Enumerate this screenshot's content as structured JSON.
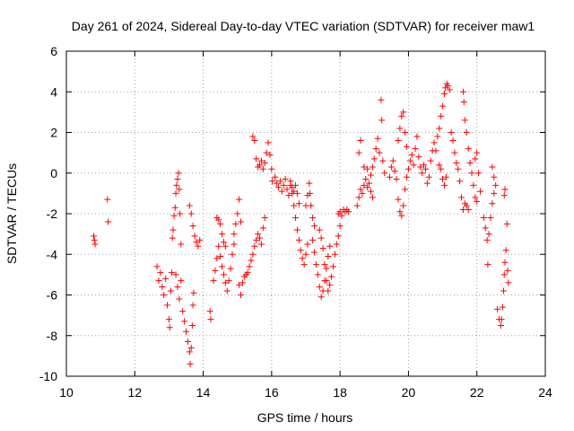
{
  "chart_data": {
    "type": "scatter",
    "title": "Day 261 of 2024, Sidereal Day-to-day VTEC variation (SDTVAR) for receiver maw1",
    "xlabel": "GPS time / hours",
    "ylabel": "SDTVAR / TECUs",
    "xlim": [
      10,
      24
    ],
    "ylim": [
      -10,
      6
    ],
    "x_ticks": [
      10,
      12,
      14,
      16,
      18,
      20,
      22,
      24
    ],
    "x_tick_labels": [
      "10",
      "12",
      "14",
      "16",
      "18",
      "20",
      "22",
      "24"
    ],
    "y_ticks": [
      -10,
      -8,
      -6,
      -4,
      -2,
      0,
      2,
      4,
      6
    ],
    "y_tick_labels": [
      "-10",
      "-8",
      "-6",
      "-4",
      "-2",
      "0",
      "2",
      "4",
      "6"
    ],
    "grid": true,
    "marker": "+",
    "marker_color": "#ff0000",
    "series": [
      {
        "name": "maw1",
        "points": [
          [
            10.8,
            -3.1
          ],
          [
            10.82,
            -3.3
          ],
          [
            10.84,
            -3.5
          ],
          [
            11.2,
            -1.3
          ],
          [
            11.22,
            -2.4
          ],
          [
            12.65,
            -4.6
          ],
          [
            12.7,
            -5.3
          ],
          [
            12.75,
            -4.9
          ],
          [
            12.8,
            -5.6
          ],
          [
            12.85,
            -6.0
          ],
          [
            12.9,
            -5.2
          ],
          [
            12.95,
            -6.5
          ],
          [
            13.0,
            -7.2
          ],
          [
            13.02,
            -7.6
          ],
          [
            13.05,
            -5.8
          ],
          [
            13.08,
            -4.9
          ],
          [
            13.1,
            -3.2
          ],
          [
            13.12,
            -2.8
          ],
          [
            13.15,
            -2.1
          ],
          [
            13.18,
            -1.7
          ],
          [
            13.2,
            -1.0
          ],
          [
            13.22,
            -0.6
          ],
          [
            13.25,
            -0.3
          ],
          [
            13.28,
            0.0
          ],
          [
            13.3,
            -0.8
          ],
          [
            13.32,
            -2.0
          ],
          [
            13.35,
            -3.5
          ],
          [
            13.2,
            -5.0
          ],
          [
            13.25,
            -5.6
          ],
          [
            13.3,
            -6.2
          ],
          [
            13.35,
            -5.3
          ],
          [
            13.4,
            -6.8
          ],
          [
            13.45,
            -7.3
          ],
          [
            13.5,
            -7.8
          ],
          [
            13.55,
            -8.3
          ],
          [
            13.6,
            -8.8
          ],
          [
            13.62,
            -9.4
          ],
          [
            13.65,
            -8.6
          ],
          [
            13.68,
            -7.5
          ],
          [
            13.7,
            -6.5
          ],
          [
            13.72,
            -5.9
          ],
          [
            13.6,
            -1.6
          ],
          [
            13.65,
            -2.0
          ],
          [
            13.7,
            -2.6
          ],
          [
            13.75,
            -3.1
          ],
          [
            13.8,
            -3.4
          ],
          [
            13.85,
            -3.6
          ],
          [
            13.9,
            -3.3
          ],
          [
            14.2,
            -6.8
          ],
          [
            14.22,
            -7.2
          ],
          [
            14.3,
            -5.3
          ],
          [
            14.35,
            -4.8
          ],
          [
            14.4,
            -4.2
          ],
          [
            14.45,
            -3.6
          ],
          [
            14.5,
            -4.1
          ],
          [
            14.55,
            -4.6
          ],
          [
            14.6,
            -5.0
          ],
          [
            14.65,
            -5.4
          ],
          [
            14.7,
            -5.8
          ],
          [
            14.75,
            -5.3
          ],
          [
            14.8,
            -4.7
          ],
          [
            14.85,
            -4.0
          ],
          [
            14.9,
            -3.5
          ],
          [
            14.4,
            -2.2
          ],
          [
            14.45,
            -2.3
          ],
          [
            14.5,
            -2.5
          ],
          [
            14.55,
            -3.0
          ],
          [
            14.6,
            -3.4
          ],
          [
            14.65,
            -3.6
          ],
          [
            14.9,
            -3.0
          ],
          [
            14.95,
            -2.5
          ],
          [
            15.0,
            -2.0
          ],
          [
            15.05,
            -1.3
          ],
          [
            15.1,
            -2.4
          ],
          [
            15.05,
            -5.5
          ],
          [
            15.1,
            -6.0
          ],
          [
            15.15,
            -5.4
          ],
          [
            15.2,
            -5.1
          ],
          [
            15.25,
            -5.0
          ],
          [
            15.3,
            -4.9
          ],
          [
            15.35,
            -4.6
          ],
          [
            15.4,
            -4.3
          ],
          [
            15.45,
            -4.0
          ],
          [
            15.5,
            -3.6
          ],
          [
            15.55,
            -3.3
          ],
          [
            15.6,
            -3.0
          ],
          [
            15.65,
            -3.2
          ],
          [
            15.7,
            -3.5
          ],
          [
            15.75,
            -2.7
          ],
          [
            15.8,
            -2.2
          ],
          [
            15.45,
            1.8
          ],
          [
            15.5,
            1.6
          ],
          [
            15.55,
            0.7
          ],
          [
            15.6,
            0.3
          ],
          [
            15.65,
            0.4
          ],
          [
            15.7,
            0.6
          ],
          [
            15.75,
            0.2
          ],
          [
            15.8,
            0.5
          ],
          [
            15.85,
            1.0
          ],
          [
            15.9,
            1.5
          ],
          [
            15.95,
            0.9
          ],
          [
            16.0,
            0.2
          ],
          [
            16.02,
            -0.4
          ],
          [
            16.1,
            -0.2
          ],
          [
            16.15,
            -0.5
          ],
          [
            16.2,
            -0.7
          ],
          [
            16.25,
            -0.4
          ],
          [
            16.3,
            -0.9
          ],
          [
            16.35,
            -0.6
          ],
          [
            16.4,
            -0.3
          ],
          [
            16.45,
            -0.8
          ],
          [
            16.5,
            -1.1
          ],
          [
            16.55,
            -0.4
          ],
          [
            16.6,
            -0.7
          ],
          [
            16.65,
            -0.9
          ],
          [
            16.7,
            -0.6
          ],
          [
            16.75,
            -1.0
          ],
          [
            16.8,
            -1.5
          ],
          [
            16.55,
            -0.6
          ],
          [
            16.6,
            -1.0
          ],
          [
            16.65,
            -1.6
          ],
          [
            16.7,
            -2.2
          ],
          [
            16.75,
            -2.8
          ],
          [
            16.8,
            -3.3
          ],
          [
            16.85,
            -3.8
          ],
          [
            16.9,
            -4.2
          ],
          [
            16.95,
            -4.5
          ],
          [
            17.0,
            -4.0
          ],
          [
            17.05,
            -3.5
          ],
          [
            17.0,
            -1.6
          ],
          [
            17.05,
            -1.1
          ],
          [
            17.1,
            -0.5
          ],
          [
            17.12,
            -1.0
          ],
          [
            17.15,
            -1.6
          ],
          [
            17.2,
            -2.2
          ],
          [
            17.25,
            -2.6
          ],
          [
            17.2,
            -3.3
          ],
          [
            17.25,
            -3.9
          ],
          [
            17.3,
            -4.5
          ],
          [
            17.35,
            -5.0
          ],
          [
            17.4,
            -5.6
          ],
          [
            17.45,
            -6.1
          ],
          [
            17.5,
            -5.8
          ],
          [
            17.55,
            -5.3
          ],
          [
            17.6,
            -4.7
          ],
          [
            17.65,
            -4.1
          ],
          [
            17.7,
            -3.6
          ],
          [
            17.4,
            -2.8
          ],
          [
            17.45,
            -3.2
          ],
          [
            17.5,
            -3.7
          ],
          [
            17.55,
            -4.5
          ],
          [
            17.6,
            -5.3
          ],
          [
            17.65,
            -5.8
          ],
          [
            17.7,
            -5.5
          ],
          [
            17.75,
            -5.1
          ],
          [
            17.8,
            -4.6
          ],
          [
            17.85,
            -4.0
          ],
          [
            17.9,
            -3.5
          ],
          [
            17.95,
            -3.1
          ],
          [
            18.0,
            -2.6
          ],
          [
            17.95,
            -2.0
          ],
          [
            18.0,
            -1.9
          ],
          [
            18.05,
            -2.1
          ],
          [
            18.1,
            -1.8
          ],
          [
            18.15,
            -1.9
          ],
          [
            18.2,
            -1.8
          ],
          [
            18.25,
            -1.9
          ],
          [
            18.5,
            -1.6
          ],
          [
            18.55,
            -1.2
          ],
          [
            18.6,
            -0.8
          ],
          [
            18.65,
            -1.0
          ],
          [
            18.7,
            -0.6
          ],
          [
            18.75,
            -0.3
          ],
          [
            18.8,
            -0.7
          ],
          [
            18.85,
            -0.5
          ],
          [
            18.9,
            -0.1
          ],
          [
            18.95,
            0.3
          ],
          [
            19.0,
            0.7
          ],
          [
            18.55,
            1.0
          ],
          [
            18.6,
            1.6
          ],
          [
            18.7,
            0.3
          ],
          [
            18.8,
            0.2
          ],
          [
            18.9,
            -0.9
          ],
          [
            18.95,
            -1.2
          ],
          [
            19.05,
            1.2
          ],
          [
            19.1,
            1.7
          ],
          [
            19.15,
            1.0
          ],
          [
            19.2,
            3.6
          ],
          [
            19.22,
            2.6
          ],
          [
            19.25,
            0.6
          ],
          [
            19.3,
            0.0
          ],
          [
            19.45,
            -0.2
          ],
          [
            19.5,
            0.3
          ],
          [
            19.55,
            0.6
          ],
          [
            19.6,
            0.1
          ],
          [
            19.65,
            -0.3
          ],
          [
            19.7,
            -1.3
          ],
          [
            19.75,
            -1.9
          ],
          [
            19.8,
            -2.1
          ],
          [
            19.85,
            -1.6
          ],
          [
            19.9,
            -0.8
          ],
          [
            19.95,
            -0.2
          ],
          [
            19.7,
            1.6
          ],
          [
            19.75,
            2.2
          ],
          [
            19.8,
            2.8
          ],
          [
            19.85,
            3.0
          ],
          [
            19.9,
            2.0
          ],
          [
            19.95,
            1.3
          ],
          [
            20.0,
            0.2
          ],
          [
            20.05,
            0.6
          ],
          [
            20.1,
            0.9
          ],
          [
            20.15,
            0.4
          ],
          [
            20.2,
            1.2
          ],
          [
            20.25,
            1.8
          ],
          [
            20.3,
            0.8
          ],
          [
            20.35,
            0.3
          ],
          [
            20.4,
            0.0
          ],
          [
            20.45,
            0.4
          ],
          [
            20.5,
            0.2
          ],
          [
            20.55,
            -0.5
          ],
          [
            20.6,
            -0.2
          ],
          [
            20.65,
            0.6
          ],
          [
            20.7,
            1.1
          ],
          [
            20.75,
            1.5
          ],
          [
            20.8,
            1.1
          ],
          [
            20.85,
            1.8
          ],
          [
            20.9,
            2.2
          ],
          [
            20.95,
            2.8
          ],
          [
            21.0,
            3.3
          ],
          [
            21.05,
            3.9
          ],
          [
            21.08,
            4.2
          ],
          [
            21.12,
            4.4
          ],
          [
            21.15,
            4.3
          ],
          [
            21.2,
            4.1
          ],
          [
            20.9,
            0.4
          ],
          [
            20.95,
            0.2
          ],
          [
            21.0,
            -0.3
          ],
          [
            21.05,
            -0.6
          ],
          [
            21.1,
            -0.2
          ],
          [
            21.25,
            2.0
          ],
          [
            21.3,
            1.6
          ],
          [
            21.35,
            1.0
          ],
          [
            21.4,
            0.5
          ],
          [
            21.45,
            0.2
          ],
          [
            21.5,
            -0.4
          ],
          [
            21.55,
            -1.2
          ],
          [
            21.6,
            -1.8
          ],
          [
            21.65,
            -1.5
          ],
          [
            21.7,
            -1.6
          ],
          [
            21.75,
            -1.8
          ],
          [
            21.6,
            4.0
          ],
          [
            21.62,
            3.5
          ],
          [
            21.65,
            2.6
          ],
          [
            21.7,
            2.0
          ],
          [
            21.75,
            1.2
          ],
          [
            21.8,
            0.5
          ],
          [
            21.85,
            0.0
          ],
          [
            21.9,
            -0.6
          ],
          [
            21.95,
            -1.2
          ],
          [
            22.0,
            -1.4
          ],
          [
            21.95,
            0.7
          ],
          [
            22.0,
            1.0
          ],
          [
            22.05,
            0.0
          ],
          [
            22.1,
            -0.9
          ],
          [
            22.2,
            -2.2
          ],
          [
            22.25,
            -2.7
          ],
          [
            22.3,
            -3.3
          ],
          [
            22.32,
            -4.5
          ],
          [
            22.35,
            -3.0
          ],
          [
            22.4,
            -2.2
          ],
          [
            22.45,
            -1.5
          ],
          [
            22.5,
            -1.0
          ],
          [
            22.45,
            0.3
          ],
          [
            22.5,
            -0.2
          ],
          [
            22.55,
            -0.6
          ],
          [
            22.6,
            -6.7
          ],
          [
            22.65,
            -7.2
          ],
          [
            22.7,
            -7.5
          ],
          [
            22.72,
            -7.2
          ],
          [
            22.75,
            -6.6
          ],
          [
            22.78,
            -5.8
          ],
          [
            22.8,
            -5.0
          ],
          [
            22.82,
            -4.4
          ],
          [
            22.85,
            -3.8
          ],
          [
            22.88,
            -2.5
          ],
          [
            22.9,
            -4.8
          ],
          [
            22.92,
            -5.4
          ],
          [
            22.8,
            -1.1
          ],
          [
            22.82,
            -0.8
          ]
        ]
      }
    ]
  }
}
